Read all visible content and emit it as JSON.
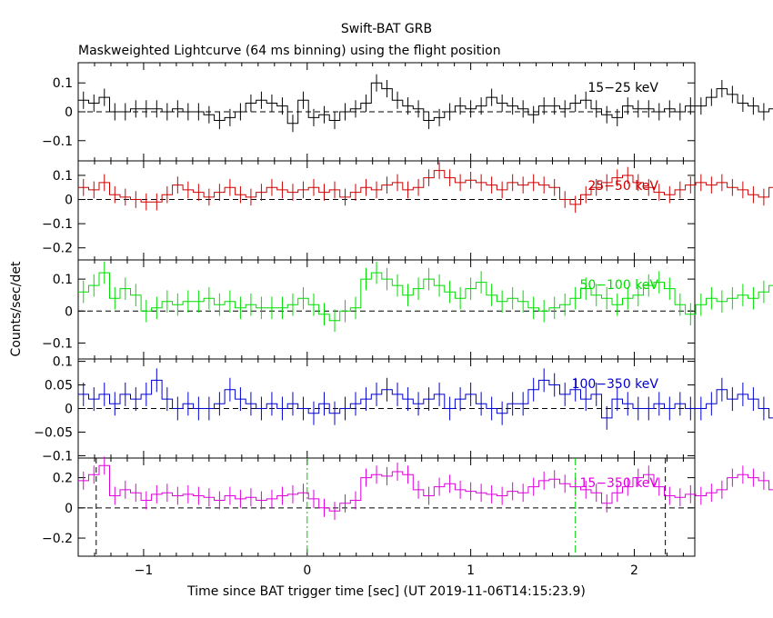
{
  "header": {
    "title": "Swift-BAT GRB",
    "subtitle": "Maskweighted Lightcurve (64 ms binning) using the flight position"
  },
  "chart_data": {
    "type": "line",
    "style": "step-with-error-bars",
    "title": "Swift-BAT GRB",
    "subtitle": "Maskweighted Lightcurve (64 ms binning) using the flight position",
    "xlabel": "Time since BAT trigger time [sec] (UT 2019-11-06T14:15:23.9)",
    "ylabel": "Counts/sec/det",
    "xlim": [
      -1.4,
      2.37
    ],
    "bin_width": 0.064,
    "x_ticks": [
      -1,
      0,
      1,
      2
    ],
    "x_tick_labels": [
      "−1",
      "0",
      "1",
      "2"
    ],
    "markers": {
      "dashed_black": [
        -1.29,
        2.19
      ],
      "dashdot_green": [
        0.0,
        1.64
      ]
    },
    "panels": [
      {
        "name": "15−25 keV",
        "color": "#000000",
        "ylim": [
          -0.17,
          0.17
        ],
        "yticks": [
          0.1,
          0,
          -0.1
        ],
        "ytick_labels": [
          "0.1",
          "0",
          "−0.1"
        ],
        "values": [
          0.04,
          0.03,
          0.05,
          0.0,
          0.0,
          0.01,
          0.01,
          0.01,
          0.0,
          0.01,
          0.0,
          0.0,
          -0.01,
          -0.03,
          -0.02,
          0.0,
          0.03,
          0.04,
          0.03,
          0.02,
          -0.04,
          0.04,
          -0.02,
          -0.01,
          -0.03,
          0.0,
          0.01,
          0.03,
          0.1,
          0.08,
          0.04,
          0.02,
          0.01,
          -0.03,
          -0.02,
          0.0,
          0.02,
          0.01,
          0.02,
          0.05,
          0.03,
          0.02,
          0.01,
          -0.01,
          0.02,
          0.02,
          0.01,
          0.03,
          0.04,
          0.01,
          -0.01,
          -0.02,
          0.02,
          0.01,
          0.01,
          0.0,
          0.01,
          0.0,
          0.02,
          0.02,
          0.05,
          0.08,
          0.06,
          0.03,
          0.02,
          0.0,
          0.01,
          0.03,
          0.04,
          0.02,
          0.04,
          0.06,
          0.03,
          0.02,
          0.03,
          0.03
        ],
        "errors": [
          0.03,
          0.03,
          0.03,
          0.03,
          0.03,
          0.03,
          0.03,
          0.03,
          0.03,
          0.03,
          0.03,
          0.03,
          0.03,
          0.03,
          0.03,
          0.03,
          0.03,
          0.03,
          0.03,
          0.03,
          0.03,
          0.03,
          0.03,
          0.03,
          0.03,
          0.03,
          0.03,
          0.03,
          0.03,
          0.03,
          0.03,
          0.03,
          0.03,
          0.03,
          0.03,
          0.03,
          0.03,
          0.03,
          0.03,
          0.03,
          0.03,
          0.03,
          0.03,
          0.03,
          0.03,
          0.03,
          0.03,
          0.03,
          0.03,
          0.03,
          0.03,
          0.03,
          0.03,
          0.03,
          0.03,
          0.03,
          0.03,
          0.03,
          0.03,
          0.03,
          0.03,
          0.03,
          0.03,
          0.03,
          0.03,
          0.03,
          0.03,
          0.03,
          0.03,
          0.03,
          0.03,
          0.03,
          0.03,
          0.03,
          0.03,
          0.03
        ]
      },
      {
        "name": "25−50 keV",
        "color": "#cc0000",
        "ylim": [
          -0.25,
          0.16
        ],
        "yticks": [
          0.1,
          0,
          -0.1,
          -0.2
        ],
        "ytick_labels": [
          "0.1",
          "0",
          "−0.1",
          "−0.2"
        ],
        "values": [
          0.05,
          0.04,
          0.07,
          0.02,
          0.01,
          0.0,
          -0.01,
          -0.01,
          0.02,
          0.06,
          0.04,
          0.03,
          0.01,
          0.03,
          0.05,
          0.02,
          0.01,
          0.03,
          0.05,
          0.04,
          0.03,
          0.04,
          0.05,
          0.03,
          0.04,
          0.01,
          0.03,
          0.05,
          0.04,
          0.06,
          0.07,
          0.04,
          0.05,
          0.09,
          0.12,
          0.09,
          0.07,
          0.08,
          0.07,
          0.06,
          0.04,
          0.07,
          0.06,
          0.07,
          0.06,
          0.05,
          0.0,
          -0.02,
          0.02,
          0.05,
          0.07,
          0.09,
          0.1,
          0.07,
          0.05,
          0.03,
          0.02,
          0.04,
          0.06,
          0.07,
          0.06,
          0.07,
          0.05,
          0.04,
          0.02,
          0.01,
          0.05,
          0.06,
          0.03,
          0.04,
          0.07,
          0.08,
          0.05,
          0.04,
          0.06,
          0.08
        ],
        "errors": [
          0.035,
          0.035,
          0.035,
          0.035,
          0.035,
          0.035,
          0.035,
          0.035,
          0.035,
          0.035,
          0.035,
          0.035,
          0.035,
          0.035,
          0.035,
          0.035,
          0.035,
          0.035,
          0.035,
          0.035,
          0.035,
          0.035,
          0.035,
          0.035,
          0.035,
          0.035,
          0.035,
          0.035,
          0.035,
          0.035,
          0.035,
          0.035,
          0.035,
          0.035,
          0.035,
          0.035,
          0.035,
          0.035,
          0.035,
          0.035,
          0.035,
          0.035,
          0.035,
          0.035,
          0.035,
          0.035,
          0.035,
          0.035,
          0.035,
          0.035,
          0.035,
          0.035,
          0.035,
          0.035,
          0.035,
          0.035,
          0.035,
          0.035,
          0.035,
          0.035,
          0.035,
          0.035,
          0.035,
          0.035,
          0.035,
          0.035,
          0.035,
          0.035,
          0.035,
          0.035,
          0.035,
          0.035,
          0.035,
          0.035,
          0.035,
          0.035
        ]
      },
      {
        "name": "50−100 keV",
        "color": "#00dd00",
        "ylim": [
          -0.15,
          0.16
        ],
        "yticks": [
          0.1,
          0,
          -0.1
        ],
        "ytick_labels": [
          "0.1",
          "0",
          "−0.1"
        ],
        "values": [
          0.06,
          0.08,
          0.12,
          0.04,
          0.07,
          0.05,
          0.0,
          0.01,
          0.03,
          0.02,
          0.03,
          0.03,
          0.04,
          0.02,
          0.03,
          0.01,
          0.02,
          0.01,
          0.01,
          0.01,
          0.02,
          0.04,
          0.02,
          -0.01,
          -0.03,
          0.0,
          0.01,
          0.1,
          0.12,
          0.1,
          0.08,
          0.05,
          0.07,
          0.1,
          0.08,
          0.06,
          0.04,
          0.07,
          0.09,
          0.05,
          0.03,
          0.04,
          0.03,
          0.01,
          0.0,
          0.01,
          0.02,
          0.04,
          0.07,
          0.05,
          0.04,
          0.02,
          0.04,
          0.05,
          0.08,
          0.09,
          0.07,
          0.02,
          -0.01,
          0.02,
          0.04,
          0.03,
          0.04,
          0.05,
          0.04,
          0.06,
          0.08,
          0.05,
          0.04,
          0.03,
          0.06,
          0.05,
          -0.01,
          0.02,
          0.06,
          0.03
        ],
        "errors": [
          0.035,
          0.035,
          0.035,
          0.035,
          0.035,
          0.035,
          0.035,
          0.035,
          0.035,
          0.035,
          0.035,
          0.035,
          0.035,
          0.035,
          0.035,
          0.035,
          0.035,
          0.035,
          0.035,
          0.035,
          0.035,
          0.035,
          0.035,
          0.035,
          0.035,
          0.035,
          0.035,
          0.035,
          0.035,
          0.035,
          0.035,
          0.035,
          0.035,
          0.035,
          0.035,
          0.035,
          0.035,
          0.035,
          0.035,
          0.035,
          0.035,
          0.035,
          0.035,
          0.035,
          0.035,
          0.035,
          0.035,
          0.035,
          0.035,
          0.035,
          0.035,
          0.035,
          0.035,
          0.035,
          0.035,
          0.035,
          0.035,
          0.035,
          0.035,
          0.035,
          0.035,
          0.035,
          0.035,
          0.035,
          0.035,
          0.035,
          0.035,
          0.035,
          0.035,
          0.035,
          0.035,
          0.035,
          0.035,
          0.035,
          0.035,
          0.035
        ]
      },
      {
        "name": "100−350 keV",
        "color": "#0000cc",
        "ylim": [
          -0.105,
          0.105
        ],
        "yticks": [
          0.1,
          0.05,
          0,
          -0.05,
          -0.1
        ],
        "ytick_labels": [
          "0.1",
          "0.05",
          "0",
          "−0.05",
          "−0.1"
        ],
        "values": [
          0.03,
          0.02,
          0.03,
          0.01,
          0.03,
          0.02,
          0.03,
          0.06,
          0.02,
          0.0,
          0.01,
          0.0,
          0.0,
          0.01,
          0.04,
          0.02,
          0.01,
          0.0,
          0.01,
          0.0,
          0.01,
          0.0,
          -0.01,
          0.01,
          -0.01,
          0.0,
          0.01,
          0.02,
          0.03,
          0.04,
          0.03,
          0.02,
          0.01,
          0.02,
          0.03,
          0.0,
          0.02,
          0.03,
          0.01,
          0.0,
          -0.01,
          0.01,
          0.01,
          0.04,
          0.06,
          0.05,
          0.03,
          0.04,
          0.02,
          0.03,
          -0.02,
          0.02,
          0.01,
          0.0,
          0.0,
          0.01,
          0.0,
          0.01,
          0.0,
          0.0,
          0.01,
          0.04,
          0.02,
          0.03,
          0.02,
          0.0,
          -0.02,
          0.01,
          0.02,
          0.0,
          0.02,
          0.01,
          0.0,
          -0.02,
          -0.03,
          -0.01
        ],
        "errors": [
          0.025,
          0.025,
          0.025,
          0.025,
          0.025,
          0.025,
          0.025,
          0.025,
          0.025,
          0.025,
          0.025,
          0.025,
          0.025,
          0.025,
          0.025,
          0.025,
          0.025,
          0.025,
          0.025,
          0.025,
          0.025,
          0.025,
          0.025,
          0.025,
          0.025,
          0.025,
          0.025,
          0.025,
          0.025,
          0.025,
          0.025,
          0.025,
          0.025,
          0.025,
          0.025,
          0.025,
          0.025,
          0.025,
          0.025,
          0.025,
          0.025,
          0.025,
          0.025,
          0.025,
          0.025,
          0.025,
          0.025,
          0.025,
          0.025,
          0.025,
          0.025,
          0.025,
          0.025,
          0.025,
          0.025,
          0.025,
          0.025,
          0.025,
          0.025,
          0.025,
          0.025,
          0.025,
          0.025,
          0.025,
          0.025,
          0.025,
          0.025,
          0.025,
          0.025,
          0.025,
          0.025,
          0.025,
          0.025,
          0.025,
          0.025,
          0.025
        ]
      },
      {
        "name": "15−350 keV",
        "color": "#dd00dd",
        "ylim": [
          -0.32,
          0.33
        ],
        "yticks": [
          0.2,
          0,
          -0.2
        ],
        "ytick_labels": [
          "0.2",
          "0",
          "−0.2"
        ],
        "values": [
          0.18,
          0.22,
          0.28,
          0.08,
          0.12,
          0.1,
          0.05,
          0.09,
          0.1,
          0.08,
          0.09,
          0.08,
          0.07,
          0.05,
          0.08,
          0.06,
          0.07,
          0.05,
          0.06,
          0.08,
          0.09,
          0.1,
          0.06,
          0.0,
          -0.02,
          0.03,
          0.05,
          0.2,
          0.22,
          0.21,
          0.24,
          0.22,
          0.12,
          0.08,
          0.14,
          0.16,
          0.12,
          0.11,
          0.1,
          0.09,
          0.08,
          0.11,
          0.1,
          0.14,
          0.18,
          0.19,
          0.16,
          0.14,
          0.12,
          0.1,
          0.03,
          0.1,
          0.14,
          0.2,
          0.22,
          0.14,
          0.08,
          0.07,
          0.09,
          0.08,
          0.1,
          0.12,
          0.2,
          0.22,
          0.2,
          0.18,
          0.12,
          0.14,
          0.18,
          0.12,
          0.15,
          0.2,
          0.16,
          0.1,
          0.14,
          0.12
        ],
        "errors": [
          0.06,
          0.06,
          0.06,
          0.06,
          0.06,
          0.06,
          0.06,
          0.06,
          0.06,
          0.06,
          0.06,
          0.06,
          0.06,
          0.06,
          0.06,
          0.06,
          0.06,
          0.06,
          0.06,
          0.06,
          0.06,
          0.06,
          0.06,
          0.06,
          0.06,
          0.06,
          0.06,
          0.06,
          0.06,
          0.06,
          0.06,
          0.06,
          0.06,
          0.06,
          0.06,
          0.06,
          0.06,
          0.06,
          0.06,
          0.06,
          0.06,
          0.06,
          0.06,
          0.06,
          0.06,
          0.06,
          0.06,
          0.06,
          0.06,
          0.06,
          0.06,
          0.06,
          0.06,
          0.06,
          0.06,
          0.06,
          0.06,
          0.06,
          0.06,
          0.06,
          0.06,
          0.06,
          0.06,
          0.06,
          0.06,
          0.06,
          0.06,
          0.06,
          0.06,
          0.06,
          0.06,
          0.06,
          0.06,
          0.06,
          0.06,
          0.06
        ]
      }
    ]
  }
}
